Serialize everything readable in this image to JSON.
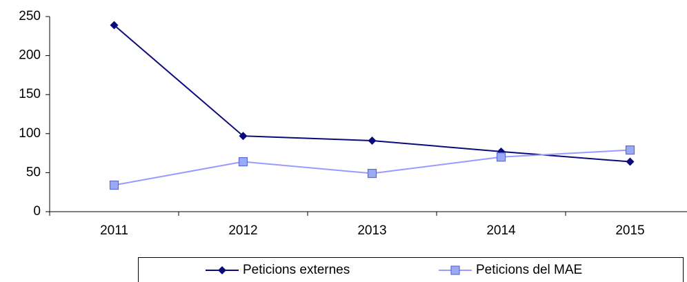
{
  "chart_data": {
    "type": "line",
    "categories": [
      "2011",
      "2012",
      "2013",
      "2014",
      "2015"
    ],
    "series": [
      {
        "name": "Peticions externes",
        "color": "#0a0a7d",
        "marker": "diamond",
        "values": [
          239,
          97,
          91,
          77,
          64
        ]
      },
      {
        "name": "Peticions del MAE",
        "color": "#9999ff",
        "marker": "square",
        "values": [
          34,
          64,
          49,
          70,
          79
        ]
      }
    ],
    "ylim": [
      0,
      250
    ],
    "yticks": [
      0,
      50,
      100,
      150,
      200,
      250
    ],
    "grid": false,
    "legend": "bottom"
  }
}
